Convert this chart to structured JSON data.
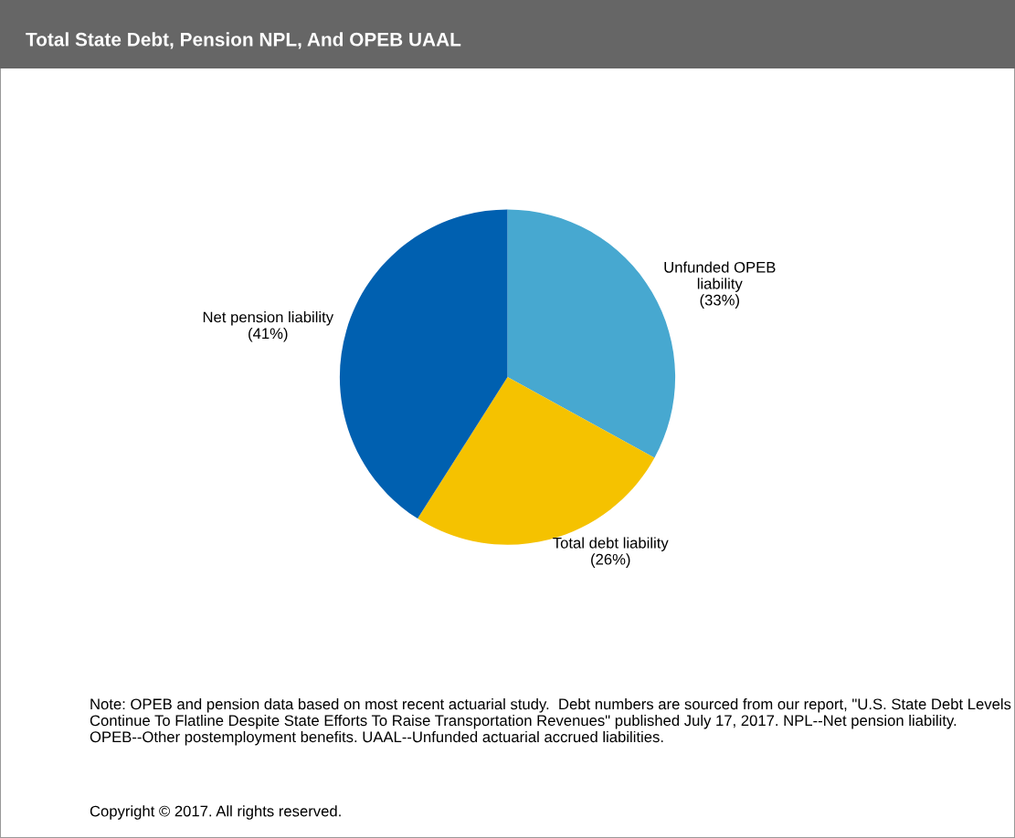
{
  "chart_data": {
    "type": "pie",
    "title": "Total State Debt, Pension NPL, And OPEB UAAL",
    "categories": [
      "Unfunded OPEB\nliability",
      "Total debt liability",
      "Net pension liability"
    ],
    "values": [
      33,
      26,
      41
    ],
    "value_labels": [
      "(33%)",
      "(26%)",
      "(41%)"
    ],
    "colors": [
      "#47a8d0",
      "#f5c200",
      "#0060b0"
    ],
    "annotations": [
      "Note: OPEB and pension data based on most recent actuarial study.  Debt numbers are sourced from our report, \"U.S. State Debt Levels Continue To Flatline Despite State Efforts To Raise Transportation Revenues\" published July 17, 2017. NPL--Net pension liability. OPEB--Other postemployment benefits. UAAL--Unfunded actuarial accrued liabilities.",
      "Copyright © 2017. All rights reserved."
    ]
  }
}
